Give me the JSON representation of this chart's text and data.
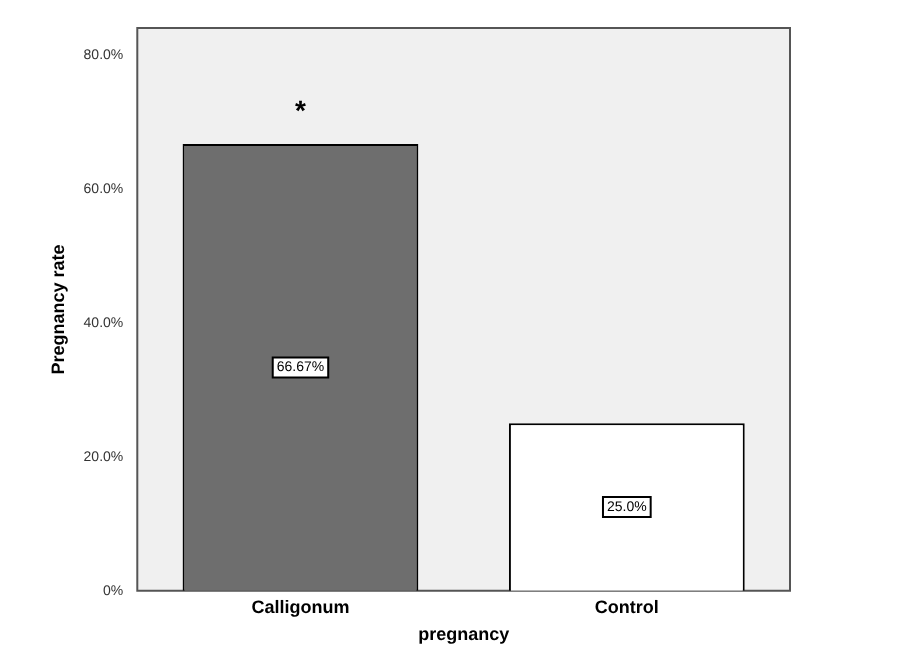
{
  "chart_data": {
    "type": "bar",
    "xlabel": "pregnancy",
    "ylabel": "Pregnancy rate",
    "categories": [
      "Calligonum",
      "Control"
    ],
    "values": [
      66.67,
      25.0
    ],
    "colors": [
      "#6e6e6e",
      "#ffffff"
    ],
    "value_labels": [
      "66.67%",
      "25.0%"
    ],
    "ylim": [
      0,
      84
    ],
    "yticks": [
      {
        "value": 0,
        "label": "0%"
      },
      {
        "value": 20,
        "label": "20.0%"
      },
      {
        "value": 40,
        "label": "40.0%"
      },
      {
        "value": 60,
        "label": "60.0%"
      },
      {
        "value": 80,
        "label": "80.0%"
      }
    ],
    "annotations": [
      "*"
    ],
    "grid": false,
    "legend": false
  }
}
